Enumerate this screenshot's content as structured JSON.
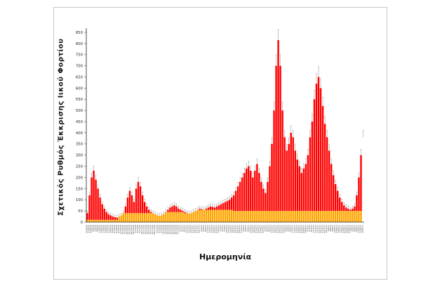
{
  "chart_data": {
    "type": "bar",
    "title": "",
    "ylabel": "Σχετικός Ρυθμός Έκκρισης Ιικού Φορτίου",
    "xlabel": "Ημερομηνία",
    "ylim": [
      0,
      850
    ],
    "ytick_step": 50,
    "grid": false,
    "legend": "none",
    "bar_color": "#fe0000",
    "base_color": "#ffa500",
    "error_color": "#8c8c8c",
    "x_tick_start": "2020-08-24",
    "x_tick_interval_days": 3,
    "x_tick_label_format": "d/m/yy",
    "series": [
      {
        "name": "baseline-component",
        "color": "#ffa500",
        "values": [
          10,
          10,
          10,
          10,
          10,
          10,
          10,
          10,
          10,
          10,
          10,
          10,
          10,
          10,
          10,
          25,
          30,
          40,
          40,
          40,
          40,
          40,
          40,
          40,
          40,
          40,
          40,
          40,
          40,
          40,
          40,
          40,
          35,
          30,
          28,
          30,
          35,
          45,
          45,
          45,
          45,
          45,
          45,
          45,
          45,
          45,
          40,
          38,
          40,
          45,
          50,
          50,
          55,
          55,
          55,
          55,
          55,
          55,
          55,
          55,
          55,
          55,
          55,
          55,
          55,
          55,
          55,
          55,
          55,
          50,
          50,
          50,
          50,
          50,
          50,
          50,
          50,
          50,
          50,
          50,
          50,
          50,
          50,
          50,
          50,
          50,
          50,
          50,
          50,
          50,
          50,
          50,
          50,
          50,
          50,
          50,
          50,
          50,
          50,
          50,
          50,
          50,
          50,
          50,
          50,
          50,
          50,
          50,
          50,
          50,
          50,
          50,
          50,
          50,
          50,
          50,
          50,
          50,
          50,
          50,
          50,
          50,
          50,
          50,
          50,
          50,
          50,
          50,
          50,
          50
        ]
      },
      {
        "name": "viral-load-total",
        "color": "#fe0000",
        "values": [
          40,
          120,
          200,
          230,
          190,
          150,
          110,
          80,
          60,
          45,
          35,
          30,
          25,
          22,
          20,
          25,
          30,
          40,
          70,
          110,
          140,
          120,
          90,
          150,
          180,
          160,
          120,
          90,
          70,
          55,
          45,
          40,
          35,
          30,
          28,
          30,
          35,
          45,
          55,
          65,
          70,
          75,
          70,
          60,
          55,
          50,
          45,
          40,
          38,
          40,
          45,
          50,
          55,
          60,
          58,
          55,
          60,
          65,
          70,
          68,
          65,
          70,
          75,
          80,
          85,
          90,
          95,
          100,
          110,
          120,
          140,
          160,
          180,
          200,
          220,
          240,
          250,
          230,
          200,
          230,
          260,
          220,
          180,
          150,
          130,
          180,
          250,
          350,
          500,
          700,
          815,
          700,
          500,
          380,
          320,
          350,
          400,
          380,
          320,
          280,
          250,
          220,
          240,
          260,
          300,
          380,
          450,
          550,
          620,
          650,
          600,
          520,
          440,
          380,
          320,
          260,
          210,
          170,
          140,
          110,
          90,
          75,
          65,
          60,
          55,
          60,
          70,
          120,
          200,
          300,
          380
        ]
      }
    ],
    "errors": [
      10,
      15,
      20,
      22,
      19,
      17,
      15,
      13,
      12,
      11,
      10,
      10,
      10,
      9,
      9,
      10,
      10,
      10,
      12,
      15,
      16,
      15,
      13,
      17,
      19,
      18,
      15,
      13,
      12,
      11,
      11,
      10,
      10,
      10,
      10,
      10,
      10,
      11,
      11,
      12,
      12,
      13,
      12,
      12,
      11,
      11,
      11,
      10,
      10,
      10,
      11,
      11,
      11,
      12,
      11,
      11,
      12,
      12,
      12,
      12,
      12,
      12,
      13,
      13,
      13,
      13,
      14,
      14,
      15,
      15,
      16,
      18,
      19,
      20,
      21,
      22,
      23,
      22,
      20,
      22,
      24,
      21,
      19,
      17,
      16,
      19,
      23,
      29,
      38,
      50,
      57,
      50,
      38,
      31,
      27,
      29,
      32,
      31,
      27,
      25,
      23,
      21,
      22,
      24,
      26,
      31,
      35,
      41,
      45,
      47,
      44,
      39,
      34,
      31,
      27,
      24,
      21,
      18,
      16,
      15,
      13,
      13,
      12,
      12,
      11,
      12,
      12,
      15,
      20,
      26,
      31
    ]
  }
}
